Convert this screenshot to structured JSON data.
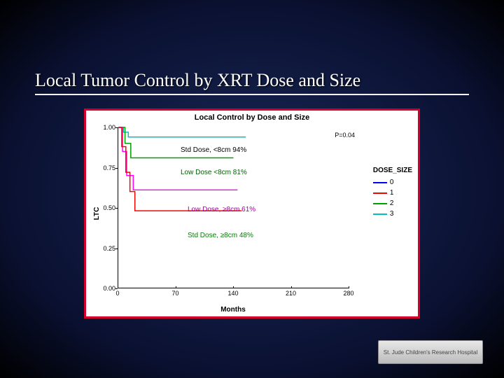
{
  "slide": {
    "title": "Local Tumor Control by XRT Dose and Size"
  },
  "chart": {
    "type": "kaplan-meier",
    "frame_border_color": "#d4002a",
    "background_color": "#ffffff",
    "title": "Local Control by Dose and Size",
    "title_fontsize": 11,
    "xlabel": "Months",
    "ylabel": "LTC",
    "label_fontsize": 10,
    "xlim": [
      0,
      280
    ],
    "ylim": [
      0,
      1.0
    ],
    "xticks": [
      0,
      70,
      140,
      210,
      280
    ],
    "yticks": [
      0.0,
      0.25,
      0.5,
      0.75,
      1.0
    ],
    "p_value": "P=0.04",
    "legend": {
      "title": "DOSE_SIZE",
      "items": [
        {
          "label": "0",
          "color": "#0000ff"
        },
        {
          "label": "1",
          "color": "#ff0000"
        },
        {
          "label": "2",
          "color": "#00a000"
        },
        {
          "label": "3",
          "color": "#00c0c0"
        }
      ]
    },
    "series": [
      {
        "name": "Std Dose, <8cm 94%",
        "color": "#00c0c0",
        "label_color": "#000000",
        "points": [
          [
            0,
            1.0
          ],
          [
            6,
            1.0
          ],
          [
            6,
            0.97
          ],
          [
            12,
            0.97
          ],
          [
            12,
            0.94
          ],
          [
            155,
            0.94
          ]
        ]
      },
      {
        "name": "Low Dose <8cm 81%",
        "color": "#00a000",
        "label_color": "#006000",
        "points": [
          [
            0,
            1.0
          ],
          [
            8,
            1.0
          ],
          [
            8,
            0.9
          ],
          [
            15,
            0.9
          ],
          [
            15,
            0.81
          ],
          [
            140,
            0.81
          ]
        ]
      },
      {
        "name": "Low Dose, ≥8cm 61%",
        "color": "#ff00ff",
        "label_color": "#a000a0",
        "points": [
          [
            0,
            1.0
          ],
          [
            5,
            1.0
          ],
          [
            5,
            0.85
          ],
          [
            10,
            0.85
          ],
          [
            10,
            0.7
          ],
          [
            18,
            0.7
          ],
          [
            18,
            0.61
          ],
          [
            145,
            0.61
          ]
        ]
      },
      {
        "name": "Std Dose, ≥8cm 48%",
        "color": "#ff0000",
        "label_color": "#008000",
        "points": [
          [
            0,
            1.0
          ],
          [
            4,
            1.0
          ],
          [
            4,
            0.88
          ],
          [
            9,
            0.88
          ],
          [
            9,
            0.72
          ],
          [
            14,
            0.72
          ],
          [
            14,
            0.6
          ],
          [
            20,
            0.6
          ],
          [
            20,
            0.48
          ],
          [
            150,
            0.48
          ]
        ]
      }
    ],
    "series_label_positions": [
      {
        "idx": 0,
        "x": 90,
        "y": 33
      },
      {
        "idx": 1,
        "x": 90,
        "y": 65
      },
      {
        "idx": 2,
        "x": 100,
        "y": 118
      },
      {
        "idx": 3,
        "x": 100,
        "y": 155
      }
    ]
  },
  "logo": {
    "text": "St. Jude Children's Research Hospital"
  }
}
